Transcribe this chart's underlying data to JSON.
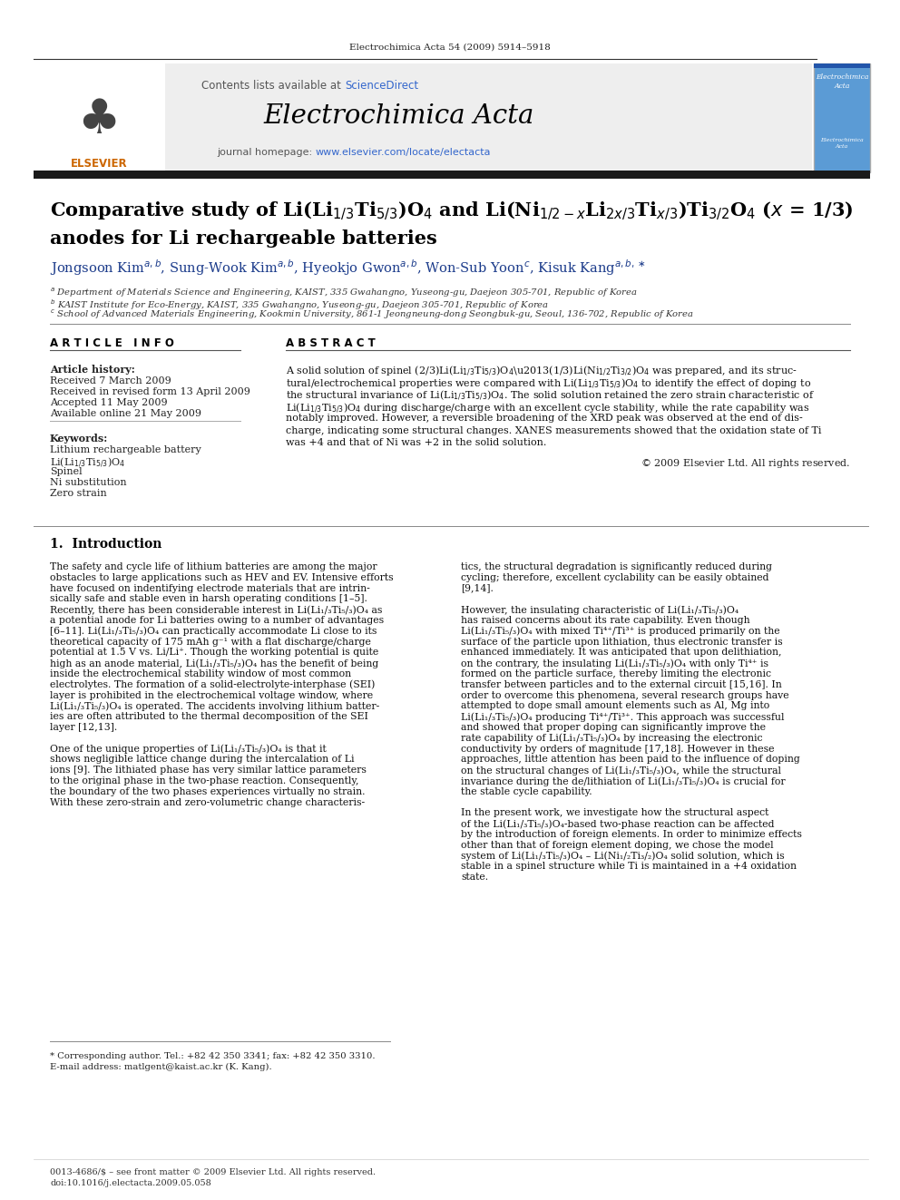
{
  "journal_header_text": "Electrochimica Acta 54 (2009) 5914–5918",
  "contents_text": "Contents lists available at ScienceDirect",
  "journal_name": "Electrochimica Acta",
  "journal_homepage": "journal homepage: www.elsevier.com/locate/electacta",
  "article_info_header": "A R T I C L E   I N F O",
  "abstract_header": "A B S T R A C T",
  "article_history_label": "Article history:",
  "received": "Received 7 March 2009",
  "received_revised": "Received in revised form 13 April 2009",
  "accepted": "Accepted 11 May 2009",
  "available": "Available online 21 May 2009",
  "keywords_label": "Keywords:",
  "keyword1": "Lithium rechargeable battery",
  "keyword2": "Li(Li$_{1/3}$Ti$_{5/3}$)O$_4$",
  "keyword3": "Spinel",
  "keyword4": "Ni substitution",
  "keyword5": "Zero strain",
  "copyright": "© 2009 Elsevier Ltd. All rights reserved.",
  "intro_header": "1.  Introduction",
  "footnote_star": "* Corresponding author. Tel.: +82 42 350 3341; fax: +82 42 350 3310.",
  "footnote_email": "E-mail address: matlgent@kaist.ac.kr (K. Kang).",
  "footer_issn": "0013-4686/$ – see front matter © 2009 Elsevier Ltd. All rights reserved.",
  "footer_doi": "doi:10.1016/j.electacta.2009.05.058",
  "bg_color": "#ffffff",
  "header_bg": "#eeeeee",
  "dark_bar_color": "#1a1a1a",
  "orange_color": "#cc6600",
  "sci_direct_blue": "#3366cc",
  "author_blue": "#1a3a8a"
}
